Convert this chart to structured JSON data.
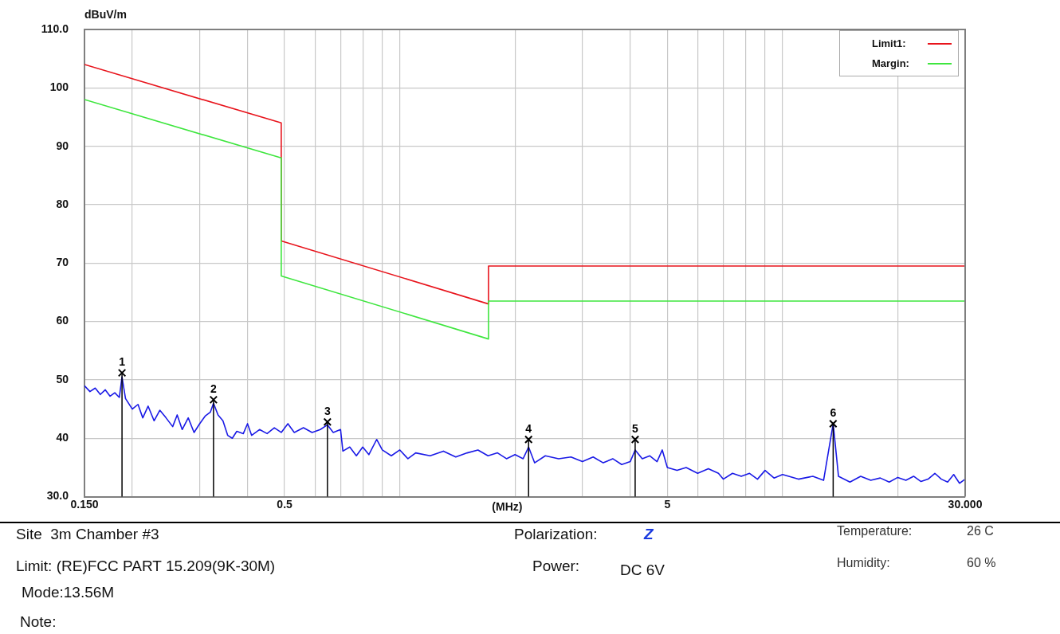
{
  "chart_data": {
    "type": "line",
    "xlabel": "(MHz)",
    "ylabel": "dBuV/m",
    "log": "x",
    "grid": true,
    "legend": "top right",
    "xlim": [
      0.15,
      30
    ],
    "xticks": [
      {
        "value": 0.15,
        "label": "0.150"
      },
      {
        "value": 0.2,
        "label": null
      },
      {
        "value": 0.3,
        "label": null
      },
      {
        "value": 0.4,
        "label": null
      },
      0.5,
      {
        "value": 0.6,
        "label": null
      },
      {
        "value": 0.7,
        "label": null
      },
      {
        "value": 0.8,
        "label": null
      },
      {
        "value": 0.9,
        "label": null
      },
      {
        "value": 1,
        "label": null
      },
      {
        "value": 2,
        "label": null
      },
      {
        "value": 3,
        "label": null
      },
      {
        "value": 4,
        "label": null
      },
      5,
      {
        "value": 6,
        "label": null
      },
      {
        "value": 7,
        "label": null
      },
      {
        "value": 8,
        "label": null
      },
      {
        "value": 9,
        "label": null
      },
      {
        "value": 10,
        "label": null
      },
      {
        "value": 20,
        "label": null
      },
      {
        "value": 30,
        "label": "30.000"
      }
    ],
    "ylim": [
      30,
      110
    ],
    "yticks": [
      {
        "value": 30,
        "label": "30.0"
      },
      40,
      50,
      60,
      70,
      80,
      90,
      100,
      {
        "value": 110,
        "label": "110.0"
      }
    ],
    "series": [
      {
        "name": "Limit1:",
        "color": "#e8141c",
        "x": [
          0.15,
          0.49,
          0.49,
          1.705,
          1.705,
          30
        ],
        "values": [
          104,
          94,
          73.8,
          63,
          69.5,
          69.5
        ]
      },
      {
        "name": "Margin:",
        "color": "#3ee63e",
        "x": [
          0.15,
          0.49,
          0.49,
          1.705,
          1.705,
          30
        ],
        "values": [
          98,
          88,
          67.8,
          57,
          63.5,
          63.5
        ]
      },
      {
        "color": "#1a1ae6",
        "x": [
          0.15,
          0.155,
          0.16,
          0.165,
          0.17,
          0.175,
          0.18,
          0.185,
          0.188,
          0.192,
          0.2,
          0.207,
          0.213,
          0.22,
          0.228,
          0.236,
          0.245,
          0.255,
          0.262,
          0.27,
          0.28,
          0.29,
          0.3,
          0.31,
          0.32,
          0.326,
          0.335,
          0.345,
          0.355,
          0.365,
          0.375,
          0.39,
          0.4,
          0.41,
          0.43,
          0.45,
          0.47,
          0.49,
          0.51,
          0.53,
          0.56,
          0.59,
          0.62,
          0.647,
          0.67,
          0.7,
          0.71,
          0.74,
          0.77,
          0.8,
          0.83,
          0.87,
          0.9,
          0.95,
          1,
          1.05,
          1.1,
          1.2,
          1.3,
          1.4,
          1.5,
          1.6,
          1.7,
          1.8,
          1.9,
          2,
          2.1,
          2.17,
          2.25,
          2.4,
          2.6,
          2.8,
          3,
          3.2,
          3.4,
          3.6,
          3.8,
          4,
          4.12,
          4.3,
          4.5,
          4.7,
          4.85,
          5,
          5.3,
          5.6,
          6,
          6.4,
          6.8,
          7,
          7.4,
          7.8,
          8.2,
          8.6,
          9,
          9.5,
          10,
          11,
          12,
          12.8,
          13.56,
          14,
          15,
          16,
          17,
          18,
          19,
          20,
          21,
          22,
          23,
          24,
          25,
          26,
          27,
          28,
          29,
          30
        ],
        "values": [
          49,
          48,
          48.6,
          47.5,
          48.3,
          47.2,
          47.8,
          47,
          50.5,
          46.8,
          45,
          45.8,
          43.5,
          45.5,
          43,
          44.8,
          43.5,
          42,
          44,
          41.5,
          43.5,
          41,
          42.5,
          43.8,
          44.5,
          46,
          44,
          43,
          40.5,
          40,
          41.2,
          40.8,
          42.5,
          40.5,
          41.5,
          40.8,
          41.8,
          41,
          42.5,
          41,
          41.8,
          41,
          41.5,
          42.3,
          41,
          41.5,
          37.8,
          38.5,
          37,
          38.5,
          37.2,
          39.8,
          38,
          37,
          38,
          36.5,
          37.5,
          37,
          37.8,
          36.8,
          37.5,
          38,
          37,
          37.5,
          36.5,
          37.2,
          36.5,
          38.5,
          35.8,
          37,
          36.5,
          36.8,
          36,
          36.8,
          35.8,
          36.5,
          35.5,
          36,
          38,
          36.5,
          37,
          36,
          38,
          35,
          34.5,
          35,
          34,
          34.8,
          34,
          33,
          34,
          33.5,
          34,
          33,
          34.5,
          33.2,
          33.8,
          33,
          33.5,
          32.8,
          42.5,
          33.5,
          32.5,
          33.5,
          32.8,
          33.2,
          32.5,
          33.3,
          32.8,
          33.5,
          32.6,
          33,
          34,
          33,
          32.5,
          33.8,
          32.3,
          33
        ]
      },
      {
        "type": "lollipop",
        "color": "#000000",
        "marker": "cross",
        "x": [
          0.188,
          0.326,
          0.647,
          2.17,
          4.12,
          13.56
        ],
        "values": [
          51.2,
          46.6,
          42.8,
          39.8,
          39.8,
          42.5
        ]
      }
    ],
    "annotations": [
      {
        "text": "1",
        "x": 0.188,
        "y": 51.2
      },
      {
        "text": "2",
        "x": 0.326,
        "y": 46.6
      },
      {
        "text": "3",
        "x": 0.647,
        "y": 42.8
      },
      {
        "text": "4",
        "x": 2.17,
        "y": 39.8
      },
      {
        "text": "5",
        "x": 4.12,
        "y": 39.8
      },
      {
        "text": "6",
        "x": 13.56,
        "y": 42.5
      },
      "Site  3m Chamber #3",
      "Limit: (RE)FCC PART 15.209(9K-30M)",
      "Mode:13.56M",
      "Note:",
      "Polarization:",
      "Z",
      "Power:",
      "DC 6V",
      "Temperature:",
      "26 C",
      "Humidity:",
      "60 %"
    ]
  }
}
